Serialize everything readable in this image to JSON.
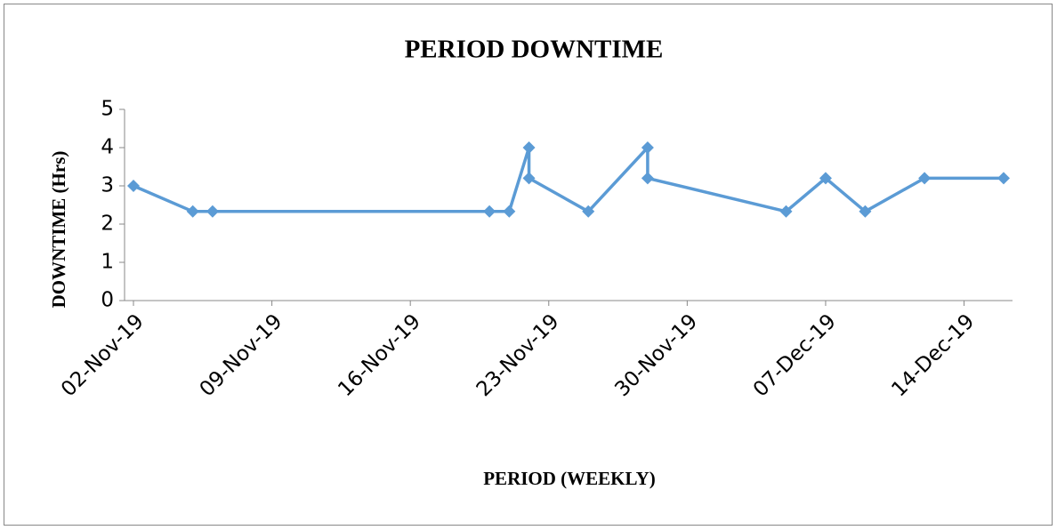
{
  "chart_data": {
    "type": "line",
    "title": "PERIOD DOWNTIME",
    "x_label": "PERIOD (WEEKLY)",
    "y_label": "DOWNTIME  (Hrs)",
    "x": [
      "2019-11-02",
      "2019-11-05",
      "2019-11-06",
      "2019-11-20",
      "2019-11-21",
      "2019-11-22",
      "2019-11-22",
      "2019-11-25",
      "2019-11-28",
      "2019-11-28",
      "2019-12-05",
      "2019-12-07",
      "2019-12-09",
      "2019-12-12",
      "2019-12-16"
    ],
    "series": [
      {
        "name": "Downtime",
        "color": "#5b9bd5",
        "values": [
          3,
          2.33,
          2.33,
          2.33,
          2.33,
          4,
          3.2,
          2.33,
          4,
          3.2,
          2.33,
          3.2,
          2.33,
          3.2,
          3.2
        ]
      }
    ],
    "xlim": [
      "2019-11-02",
      "2019-12-16"
    ],
    "xticks": [
      {
        "value": "2019-11-02",
        "label": "02-Nov-19"
      },
      {
        "value": "2019-11-09",
        "label": "09-Nov-19"
      },
      {
        "value": "2019-11-16",
        "label": "16-Nov-19"
      },
      {
        "value": "2019-11-23",
        "label": "23-Nov-19"
      },
      {
        "value": "2019-11-30",
        "label": "30-Nov-19"
      },
      {
        "value": "2019-12-07",
        "label": "07-Dec-19"
      },
      {
        "value": "2019-12-14",
        "label": "14-Dec-19"
      }
    ],
    "ylim": [
      0,
      5
    ],
    "yticks": [
      0,
      1,
      2,
      3,
      4,
      5
    ],
    "grid": false
  }
}
